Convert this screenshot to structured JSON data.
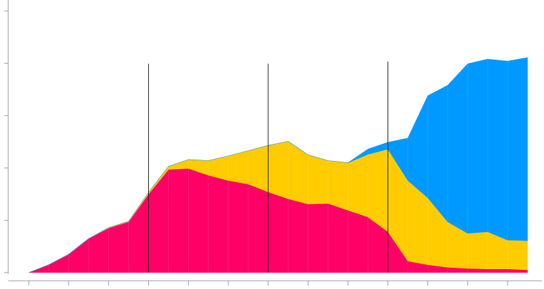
{
  "chart_data": {
    "type": "area",
    "stacked": true,
    "title": "",
    "xlabel": "",
    "ylabel": "",
    "grid": false,
    "legend": "none",
    "x": [
      0,
      1,
      2,
      3,
      4,
      5,
      6,
      7,
      8,
      9,
      10,
      11,
      12,
      13,
      14,
      15,
      16,
      17,
      18,
      19,
      20,
      21,
      22,
      23,
      24,
      25
    ],
    "xlim": [
      0,
      25
    ],
    "ylim": [
      0,
      5
    ],
    "y_tick_values": [
      0,
      1,
      2,
      3,
      4,
      5
    ],
    "x_tick_values": [
      0,
      2,
      4,
      6,
      8,
      10,
      12,
      14,
      16,
      18,
      20,
      22,
      24
    ],
    "vertical_reference_lines": [
      6,
      12,
      18
    ],
    "series": [
      {
        "color": "#ff0066",
        "values": [
          0.0,
          0.15,
          0.35,
          0.65,
          0.85,
          0.97,
          1.5,
          1.97,
          1.99,
          1.86,
          1.76,
          1.69,
          1.54,
          1.41,
          1.31,
          1.32,
          1.19,
          1.06,
          0.78,
          0.22,
          0.15,
          0.1,
          0.08,
          0.07,
          0.07,
          0.05
        ]
      },
      {
        "color": "#ffcc00",
        "values": [
          0.0,
          0.0,
          0.0,
          0.0,
          0.01,
          0.01,
          0.03,
          0.06,
          0.17,
          0.28,
          0.47,
          0.64,
          0.89,
          1.1,
          0.94,
          0.82,
          0.91,
          1.2,
          1.58,
          1.54,
          1.28,
          0.87,
          0.67,
          0.71,
          0.55,
          0.56
        ]
      },
      {
        "color": "#0099ff",
        "values": [
          0.0,
          0.0,
          0.0,
          0.0,
          0.0,
          0.0,
          0.0,
          0.0,
          0.0,
          0.0,
          0.0,
          0.0,
          0.0,
          0.0,
          0.0,
          0.0,
          0.0,
          0.1,
          0.13,
          0.81,
          1.95,
          2.61,
          3.24,
          3.3,
          3.42,
          3.5
        ]
      }
    ]
  }
}
